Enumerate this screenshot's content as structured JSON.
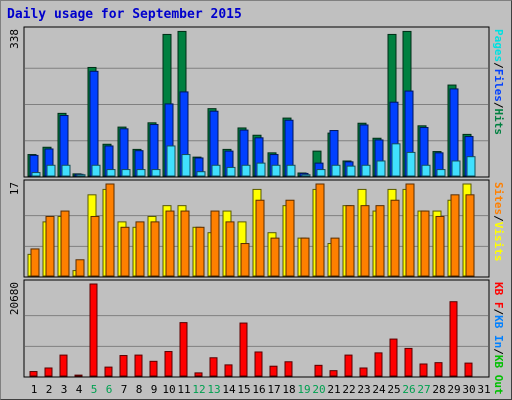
{
  "title": "Daily usage for September 2015",
  "chart_data": [
    {
      "type": "bar",
      "name_text": "Pages / Files / Hits",
      "scale_label": "338",
      "ymax": 338,
      "categories": [
        "1",
        "2",
        "3",
        "4",
        "5",
        "6",
        "7",
        "8",
        "9",
        "10",
        "11",
        "12",
        "13",
        "14",
        "15",
        "16",
        "17",
        "18",
        "19",
        "20",
        "21",
        "22",
        "23",
        "24",
        "25",
        "26",
        "27",
        "28",
        "29",
        "30",
        "31"
      ],
      "weekend_days": [
        "5",
        "6",
        "12",
        "13",
        "19",
        "20",
        "26",
        "27"
      ],
      "legend": [
        {
          "text": "Pages",
          "color": "#00e0e0"
        },
        {
          "text": "/",
          "color": "#000000"
        },
        {
          "text": "Files",
          "color": "#0040ff"
        },
        {
          "text": "/",
          "color": "#000000"
        },
        {
          "text": "Hits",
          "color": "#008040"
        }
      ],
      "series": [
        {
          "name": "Hits",
          "color": "#008040",
          "values": [
            50,
            67,
            146,
            5,
            253,
            74,
            114,
            62,
            124,
            330,
            337,
            44,
            157,
            62,
            112,
            95,
            54,
            135,
            7,
            58,
            100,
            35,
            123,
            88,
            330,
            337,
            117,
            57,
            212,
            97,
            0
          ]
        },
        {
          "name": "Files",
          "color": "#0040ff",
          "values": [
            48,
            63,
            141,
            4,
            244,
            70,
            110,
            59,
            120,
            168,
            196,
            42,
            151,
            58,
            107,
            89,
            50,
            130,
            6,
            30,
            106,
            33,
            119,
            84,
            172,
            198,
            113,
            54,
            203,
            92,
            0
          ]
        },
        {
          "name": "Pages",
          "color": "#40e0ff",
          "values": [
            8,
            25,
            25,
            3,
            25,
            15,
            15,
            15,
            15,
            70,
            50,
            10,
            25,
            20,
            25,
            30,
            25,
            25,
            3,
            15,
            25,
            23,
            25,
            35,
            75,
            55,
            25,
            15,
            35,
            45,
            0
          ]
        }
      ]
    },
    {
      "type": "bar",
      "name_text": "Visits / Sites",
      "scale_label": "17",
      "ymax": 17,
      "legend": [
        {
          "text": "Sites",
          "color": "#ff8000"
        },
        {
          "text": "/",
          "color": "#000000"
        },
        {
          "text": "Visits",
          "color": "#ffff00"
        }
      ],
      "series": [
        {
          "name": "Visits",
          "color": "#ffff00",
          "values": [
            4,
            10,
            11,
            1,
            15,
            16,
            10,
            9,
            11,
            13,
            13,
            9,
            8,
            12,
            10,
            16,
            8,
            13,
            7,
            16,
            6,
            13,
            16,
            12,
            16,
            16,
            12,
            12,
            14,
            17,
            0
          ]
        },
        {
          "name": "Sites",
          "color": "#ff8000",
          "values": [
            5,
            11,
            12,
            3,
            11,
            17,
            9,
            10,
            10,
            12,
            12,
            9,
            12,
            10,
            6,
            14,
            7,
            14,
            7,
            17,
            7,
            13,
            13,
            13,
            14,
            17,
            12,
            11,
            15,
            15,
            0
          ]
        }
      ]
    },
    {
      "type": "bar",
      "name_text": "KB F / KB In / KB Out",
      "scale_label": "20680",
      "ymax": 20680,
      "legend": [
        {
          "text": "KB F",
          "color": "#ff0000"
        },
        {
          "text": "/",
          "color": "#000000"
        },
        {
          "text": "KB In",
          "color": "#0080ff"
        },
        {
          "text": "/",
          "color": "#000000"
        },
        {
          "text": "KB Out",
          "color": "#00c000"
        }
      ],
      "series": [
        {
          "name": "KB F",
          "color": "#ff0000",
          "values": [
            1000,
            1800,
            4700,
            200,
            20680,
            2000,
            4600,
            4700,
            3300,
            5500,
            12000,
            700,
            4100,
            2500,
            11900,
            5400,
            2200,
            3200,
            100,
            2400,
            1200,
            4700,
            1800,
            5200,
            8300,
            6200,
            2700,
            3000,
            16700,
            2900,
            0
          ]
        }
      ]
    }
  ]
}
